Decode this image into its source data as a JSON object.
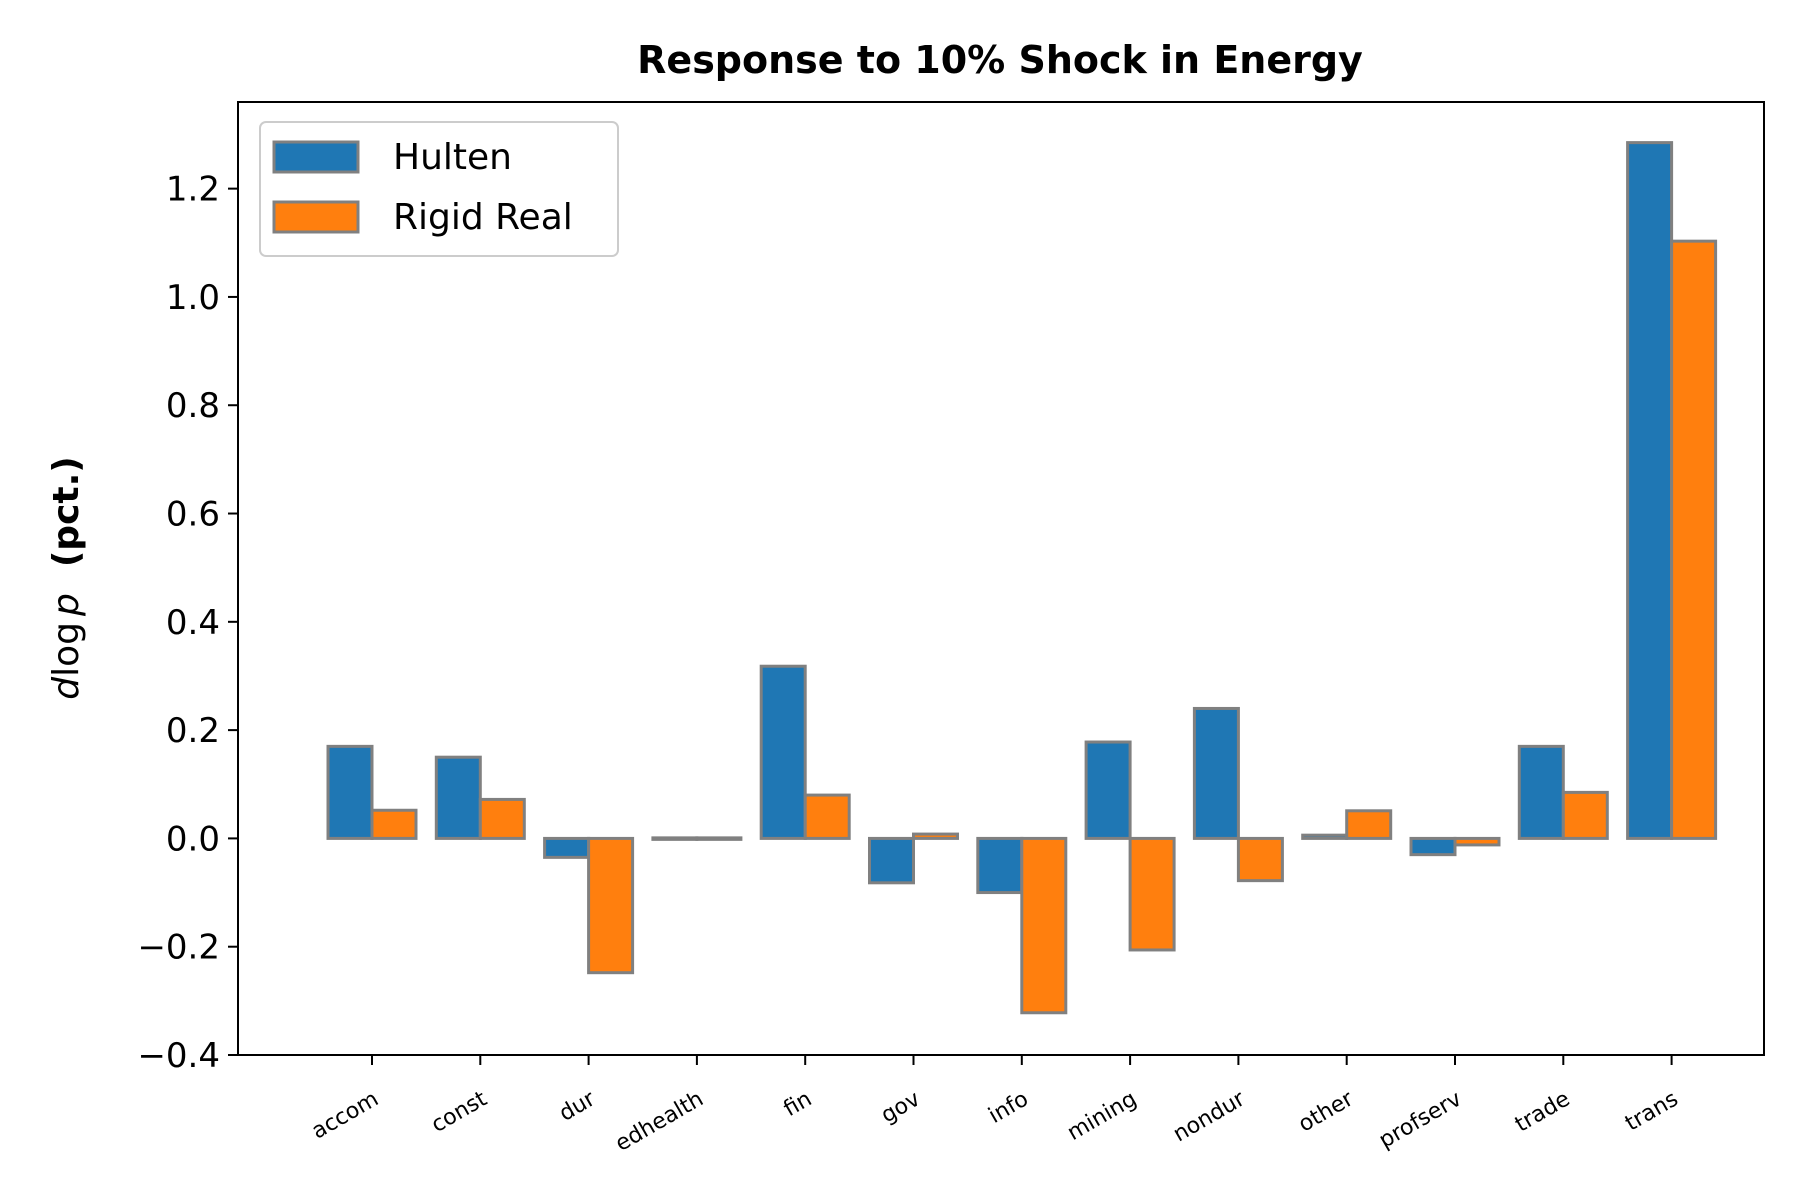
{
  "chart_data": {
    "type": "bar",
    "title": "Response to 10% Shock in Energy",
    "ylabel_italic": "d",
    "ylabel_log": "log",
    "ylabel_p": "p",
    "ylabel_bold": "(pct.)",
    "ylim": [
      -0.4,
      1.36
    ],
    "yticks": [
      -0.4,
      -0.2,
      0.0,
      0.2,
      0.4,
      0.6,
      0.8,
      1.0,
      1.2
    ],
    "ytick_labels": [
      "−0.4",
      "−0.2",
      "0.0",
      "0.2",
      "0.4",
      "0.6",
      "0.8",
      "1.0",
      "1.2"
    ],
    "categories": [
      "accom",
      "const",
      "dur",
      "edhealth",
      "fin",
      "gov",
      "info",
      "mining",
      "nondur",
      "other",
      "profserv",
      "trade",
      "trans"
    ],
    "series": [
      {
        "name": "Hulten",
        "color": "#1f77b4",
        "values": [
          0.17,
          0.15,
          -0.035,
          0.001,
          0.318,
          -0.082,
          -0.1,
          0.178,
          0.24,
          0.006,
          -0.03,
          0.17,
          1.285
        ]
      },
      {
        "name": "Rigid Real",
        "color": "#ff7f0e",
        "values": [
          0.052,
          0.072,
          -0.248,
          0.001,
          0.08,
          0.008,
          -0.322,
          -0.206,
          -0.078,
          0.051,
          -0.012,
          0.085,
          1.103
        ]
      }
    ],
    "edge_color": "#808080",
    "legend_position": "upper-left",
    "grid": false
  }
}
